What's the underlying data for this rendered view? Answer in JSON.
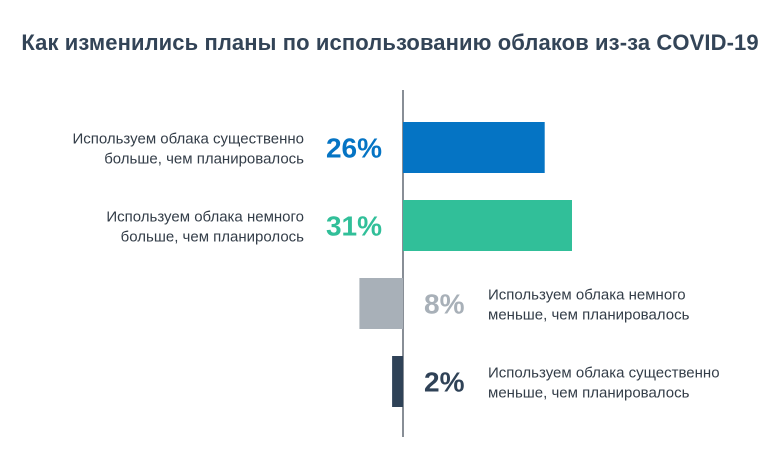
{
  "chart_data": {
    "type": "bar",
    "orientation": "horizontal-diverging",
    "title": "Как изменились планы по использованию облаков из-за COVID-19",
    "categories": [
      [
        "Используем облака существенно",
        "больше, чем планировалось"
      ],
      [
        "Используем облака немного",
        "больше, чем планиролось"
      ],
      [
        "Используем облака немного",
        "меньше, чем планировалось"
      ],
      [
        "Используем облака существенно",
        "меньше, чем планировалось"
      ]
    ],
    "values": [
      26,
      31,
      -8,
      -2
    ],
    "value_labels": [
      "26%",
      "31%",
      "8%",
      "2%"
    ],
    "colors": [
      "#0574c4",
      "#31bf99",
      "#a8b0b8",
      "#2f4257"
    ],
    "label_colors": [
      "#0574c4",
      "#31bf99",
      "#a8b0b8",
      "#2f4257"
    ],
    "xlim": [
      -10,
      40
    ],
    "grid": false,
    "legend": "none"
  }
}
